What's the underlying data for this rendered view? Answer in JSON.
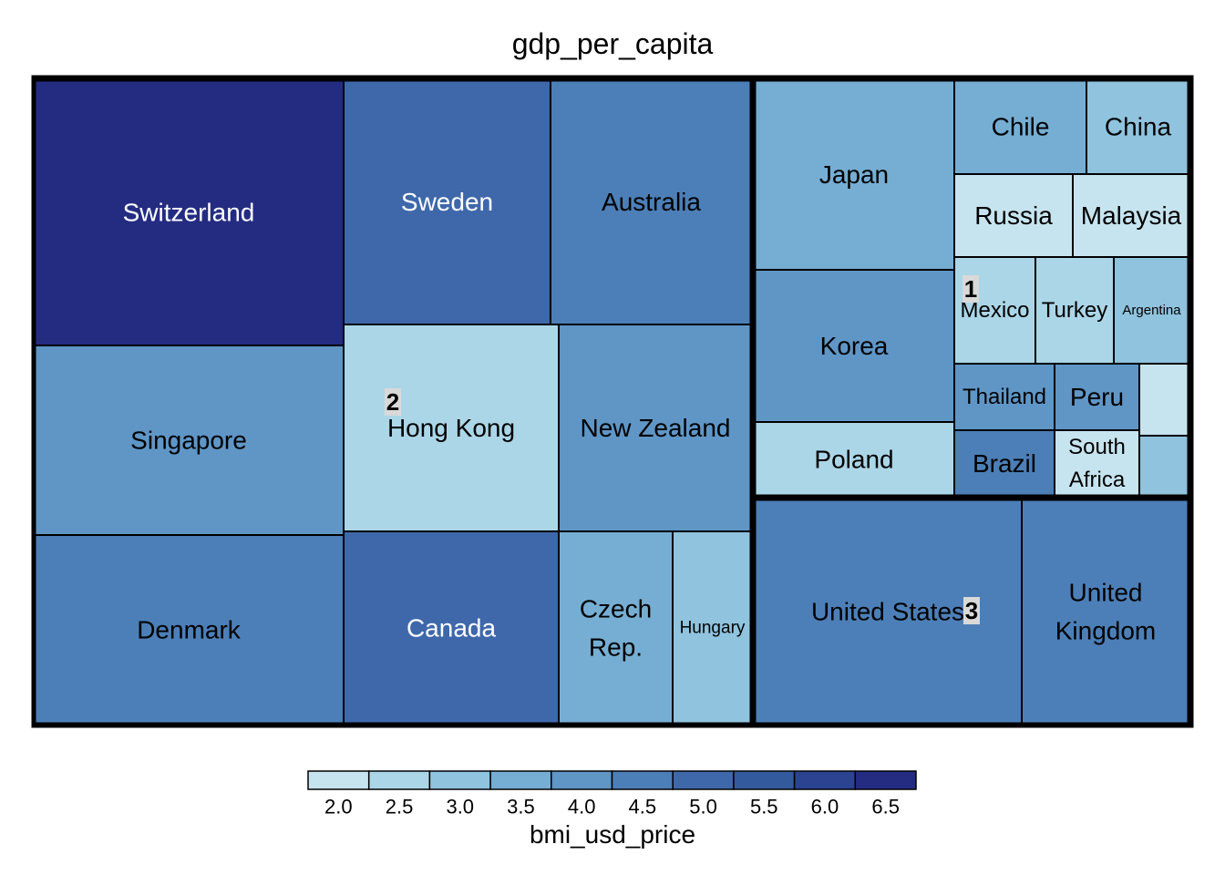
{
  "chart_data": {
    "type": "treemap",
    "title": "gdp_per_capita",
    "color_legend": {
      "title": "bmi_usd_price",
      "ticks": [
        "2.0",
        "2.5",
        "3.0",
        "3.5",
        "4.0",
        "4.5",
        "5.0",
        "5.5",
        "6.0",
        "6.5"
      ],
      "colors": [
        "#c6e4ef",
        "#abd6e7",
        "#8fc3de",
        "#76aed3",
        "#5f96c6",
        "#4c7fb7",
        "#3f68aa",
        "#345a9e",
        "#2c4391",
        "#242c82"
      ]
    },
    "groups": [
      "1",
      "2",
      "3"
    ],
    "items": [
      {
        "label": "Switzerland",
        "group": "2",
        "bmi_usd_price": 6.8
      },
      {
        "label": "Singapore",
        "group": "2",
        "bmi_usd_price": 4.2
      },
      {
        "label": "Denmark",
        "group": "2",
        "bmi_usd_price": 4.3
      },
      {
        "label": "Sweden",
        "group": "2",
        "bmi_usd_price": 5.2
      },
      {
        "label": "Australia",
        "group": "2",
        "bmi_usd_price": 4.3
      },
      {
        "label": "Hong Kong",
        "group": "2",
        "bmi_usd_price": 2.4
      },
      {
        "label": "New Zealand",
        "group": "2",
        "bmi_usd_price": 4.2
      },
      {
        "label": "Canada",
        "group": "2",
        "bmi_usd_price": 5.0
      },
      {
        "label": "Czech Rep.",
        "group": "2",
        "bmi_usd_price": 3.6
      },
      {
        "label": "Hungary",
        "group": "2",
        "bmi_usd_price": 3.0
      },
      {
        "label": "Japan",
        "group": "1",
        "bmi_usd_price": 3.5
      },
      {
        "label": "Korea",
        "group": "1",
        "bmi_usd_price": 3.9
      },
      {
        "label": "Poland",
        "group": "1",
        "bmi_usd_price": 2.6
      },
      {
        "label": "Chile",
        "group": "1",
        "bmi_usd_price": 3.5
      },
      {
        "label": "China",
        "group": "1",
        "bmi_usd_price": 3.0
      },
      {
        "label": "Russia",
        "group": "1",
        "bmi_usd_price": 2.2
      },
      {
        "label": "Malaysia",
        "group": "1",
        "bmi_usd_price": 2.2
      },
      {
        "label": "Mexico",
        "group": "1",
        "bmi_usd_price": 2.5
      },
      {
        "label": "Turkey",
        "group": "1",
        "bmi_usd_price": 2.3
      },
      {
        "label": "Argentina",
        "group": "1",
        "bmi_usd_price": 3.0
      },
      {
        "label": "Thailand",
        "group": "1",
        "bmi_usd_price": 3.9
      },
      {
        "label": "Peru",
        "group": "1",
        "bmi_usd_price": 3.9
      },
      {
        "label": "Brazil",
        "group": "1",
        "bmi_usd_price": 4.6
      },
      {
        "label": "South Africa",
        "group": "1",
        "bmi_usd_price": 2.2
      },
      {
        "label": "",
        "group": "1",
        "bmi_usd_price": 2.2
      },
      {
        "label": "",
        "group": "1",
        "bmi_usd_price": 2.8
      },
      {
        "label": "United States",
        "group": "3",
        "bmi_usd_price": 4.6
      },
      {
        "label": "United Kingdom",
        "group": "3",
        "bmi_usd_price": 4.3
      }
    ]
  }
}
